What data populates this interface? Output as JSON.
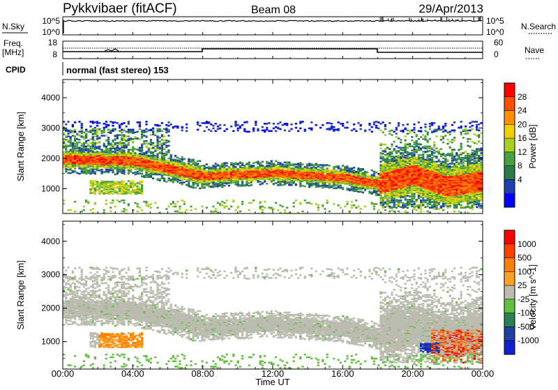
{
  "header": {
    "station": "Pykkvibaer (fitACF)",
    "beam": "Beam 08",
    "date": "29/Apr/2013"
  },
  "labels": {
    "nsky": "N.Sky",
    "freq": "Freq.",
    "mhz": "[MHz]",
    "cpid": "CPID",
    "nsearch": "N.Search",
    "nave": "Nave",
    "cpid_value": "normal (fast stereo) 153",
    "nsky_ticks": [
      "10^5",
      "10^0"
    ],
    "freq_ticks": [
      "18",
      "8"
    ],
    "nave_ticks": [
      "60",
      "0"
    ]
  },
  "chart_data": [
    {
      "type": "heatmap",
      "name": "power",
      "ylabel": "Slant Range [km]",
      "xlabel": "Time UT",
      "xlim": [
        0,
        24
      ],
      "ylim": [
        180,
        4600
      ],
      "x_ticks": [
        "00:00",
        "04:00",
        "08:00",
        "12:00",
        "16:00",
        "20:00",
        "00:00"
      ],
      "y_ticks": [
        1000,
        2000,
        3000,
        4000
      ],
      "colorbar": {
        "label": "Power [dB]",
        "ticks": [
          "28",
          "24",
          "20",
          "16",
          "12",
          "8",
          "4"
        ],
        "colors": [
          "#0000ff",
          "#2040b0",
          "#2a7a4a",
          "#4aa040",
          "#a8d020",
          "#f0d000",
          "#ff9000",
          "#ff5000",
          "#ff0000"
        ]
      },
      "main_echo_band": [
        {
          "t": 0,
          "r": 2000
        },
        {
          "t": 4,
          "r": 1950
        },
        {
          "t": 8,
          "r": 1450
        },
        {
          "t": 12,
          "r": 1550
        },
        {
          "t": 16,
          "r": 1400
        },
        {
          "t": 18,
          "r": 1200
        },
        {
          "t": 20,
          "r": 1500
        },
        {
          "t": 22,
          "r": 1100
        },
        {
          "t": 24,
          "r": 1300
        }
      ]
    },
    {
      "type": "heatmap",
      "name": "velocity",
      "ylabel": "Slant Range [km]",
      "xlabel": "Time UT",
      "xlim": [
        0,
        24
      ],
      "ylim": [
        180,
        4600
      ],
      "x_ticks": [
        "00:00",
        "04:00",
        "08:00",
        "12:00",
        "16:00",
        "20:00",
        "00:00"
      ],
      "y_ticks": [
        1000,
        2000,
        3000,
        4000
      ],
      "colorbar": {
        "label": "Velocity [m s^-1]",
        "ticks": [
          "1000",
          "500",
          "100",
          "25",
          "-25",
          "-100",
          "-500",
          "-1000"
        ],
        "colors": [
          "#ff0000",
          "#ff4000",
          "#ff8000",
          "#ffa020",
          "#bbbbb0",
          "#60c040",
          "#2a8050",
          "#2040a0",
          "#1020d0"
        ]
      }
    }
  ]
}
